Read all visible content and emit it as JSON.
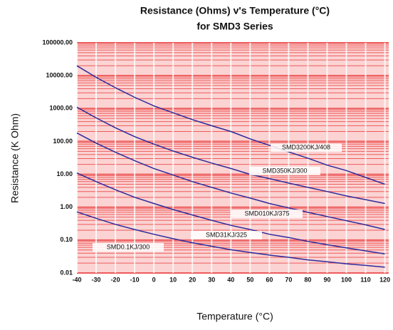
{
  "chart_data": {
    "type": "line",
    "title": "Resistance (Ohms) v's Temperature (°C)",
    "subtitle": "for SMD3 Series",
    "x_label": "Temperature (°C)",
    "y_label": "Resistance (K Ohm)",
    "x": [
      -40,
      -30,
      -20,
      -10,
      0,
      10,
      20,
      30,
      40,
      50,
      60,
      70,
      80,
      90,
      100,
      110,
      120
    ],
    "series": [
      {
        "name": "SMD3200KJ/408",
        "color": "#2b2b9c",
        "values": [
          20000,
          8900,
          4300,
          2200,
          1200,
          740,
          460,
          300,
          200,
          120,
          76,
          48,
          31,
          19,
          13,
          8,
          5
        ]
      },
      {
        "name": "SMD350KJ/300",
        "color": "#2b2b9c",
        "values": [
          1100,
          520,
          260,
          140,
          83,
          51,
          33,
          22,
          15,
          10,
          7.4,
          5.4,
          4,
          3,
          2.2,
          1.7,
          1.3
        ]
      },
      {
        "name": "SMD010KJ/375",
        "color": "#2b2b9c",
        "values": [
          180,
          89,
          47,
          26,
          15,
          9.5,
          6,
          4,
          2.7,
          1.9,
          1.3,
          0.95,
          0.7,
          0.52,
          0.39,
          0.29,
          0.21
        ]
      },
      {
        "name": "SMD31KJ/325",
        "color": "#2b2b9c",
        "values": [
          11,
          6,
          3.4,
          2,
          1.3,
          0.85,
          0.58,
          0.4,
          0.28,
          0.21,
          0.15,
          0.12,
          0.091,
          0.072,
          0.058,
          0.047,
          0.038
        ]
      },
      {
        "name": "SMD0.1KJ/300",
        "color": "#2b2b9c",
        "values": [
          0.72,
          0.46,
          0.3,
          0.21,
          0.15,
          0.11,
          0.083,
          0.065,
          0.051,
          0.042,
          0.035,
          0.03,
          0.025,
          0.022,
          0.019,
          0.017,
          0.015
        ]
      }
    ],
    "xlim": [
      -40,
      122
    ],
    "xticks": [
      -40,
      -30,
      -20,
      -10,
      0,
      10,
      20,
      30,
      40,
      50,
      60,
      70,
      80,
      90,
      100,
      110,
      120
    ],
    "ylim": [
      0.01,
      100000
    ],
    "yticks": [
      0.01,
      {
        "value": 0.1,
        "label": "0.10"
      },
      {
        "value": 1,
        "label": "1.00"
      },
      {
        "value": 10,
        "label": "10.00"
      },
      {
        "value": 100,
        "label": "100.00"
      },
      {
        "value": 1000,
        "label": "1000.00"
      },
      {
        "value": 10000,
        "label": "10000.00"
      },
      {
        "value": 100000,
        "label": "100000.00"
      }
    ],
    "ylog": true,
    "grid": true,
    "grid_color": "#ee5a5a",
    "background": "#fbd3d3"
  }
}
